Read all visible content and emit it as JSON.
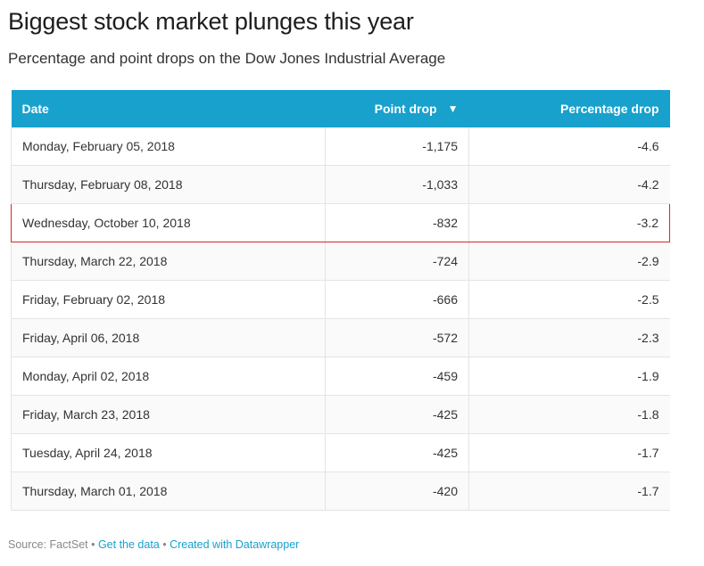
{
  "chart_data": {
    "type": "table",
    "title": "Biggest stock market plunges this year",
    "subtitle": "Percentage and point drops on the Dow Jones Industrial Average",
    "columns": [
      "Date",
      "Point drop",
      "Percentage drop"
    ],
    "sort_indicator": "▼",
    "rows": [
      {
        "date": "Monday, February 05, 2018",
        "point_drop": "-1,175",
        "pct_drop": "-4.6"
      },
      {
        "date": "Thursday, February 08, 2018",
        "point_drop": "-1,033",
        "pct_drop": "-4.2"
      },
      {
        "date": "Wednesday, October 10, 2018",
        "point_drop": "-832",
        "pct_drop": "-3.2"
      },
      {
        "date": "Thursday, March 22, 2018",
        "point_drop": "-724",
        "pct_drop": "-2.9"
      },
      {
        "date": "Friday, February 02, 2018",
        "point_drop": "-666",
        "pct_drop": "-2.5"
      },
      {
        "date": "Friday, April 06, 2018",
        "point_drop": "-572",
        "pct_drop": "-2.3"
      },
      {
        "date": "Monday, April 02, 2018",
        "point_drop": "-459",
        "pct_drop": "-1.9"
      },
      {
        "date": "Friday, March 23, 2018",
        "point_drop": "-425",
        "pct_drop": "-1.8"
      },
      {
        "date": "Tuesday, April 24, 2018",
        "point_drop": "-425",
        "pct_drop": "-1.7"
      },
      {
        "date": "Thursday, March 01, 2018",
        "point_drop": "-420",
        "pct_drop": "-1.7"
      }
    ],
    "highlighted_row": 2,
    "colors": {
      "header_bg": "#18a1cd",
      "highlight_border": "#d62728",
      "link": "#18a1cd"
    }
  },
  "footer": {
    "source": "Source: FactSet",
    "separator": " • ",
    "get_data": "Get the data",
    "created_with": "Created with Datawrapper"
  }
}
